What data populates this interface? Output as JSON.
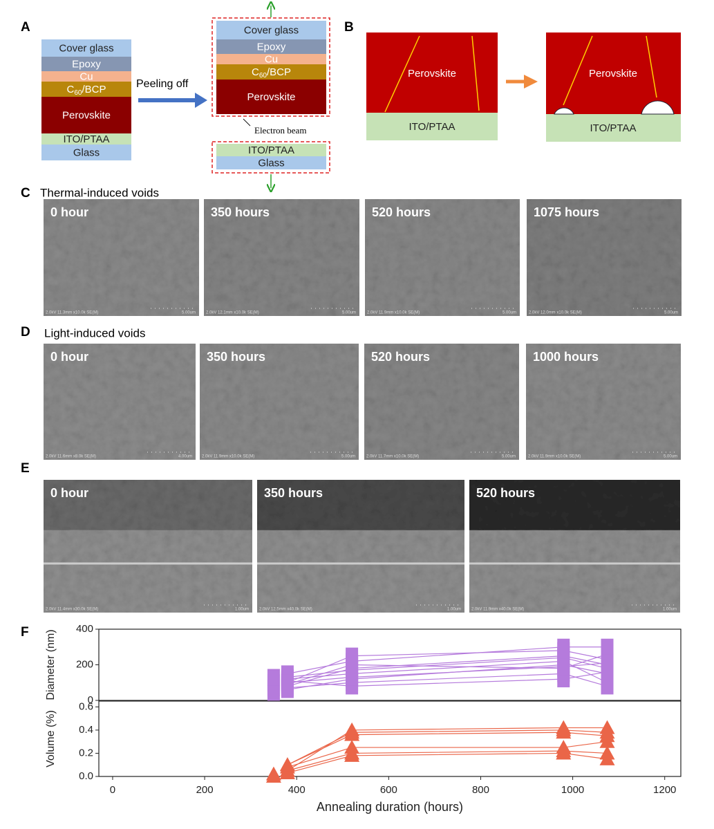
{
  "panel_labels": [
    "A",
    "B",
    "C",
    "D",
    "E",
    "F"
  ],
  "stack_full": [
    {
      "label": "Cover glass",
      "color": "#a9c8ea"
    },
    {
      "label": "Epoxy",
      "color": "#8696b2"
    },
    {
      "label": "Cu",
      "color": "#f4b28e"
    },
    {
      "parts": [
        "C",
        "60",
        "/BCP"
      ],
      "color": "#b8860b"
    },
    {
      "label": "Perovskite",
      "color": "#8b0000"
    },
    {
      "label": "ITO/PTAA",
      "color": "#c6e2b6"
    },
    {
      "label": "Glass",
      "color": "#a9c8ea"
    }
  ],
  "peel_label": "Peeling off",
  "stack_top": [
    {
      "label": "Cover glass",
      "color": "#a9c8ea"
    },
    {
      "label": "Epoxy",
      "color": "#8696b2"
    },
    {
      "label": "Cu",
      "color": "#f4b28e"
    },
    {
      "parts": [
        "C",
        "60",
        "/BCP"
      ],
      "color": "#b8860b"
    },
    {
      "label": "Perovskite",
      "color": "#8b0000"
    }
  ],
  "beam_label": "Electron beam",
  "stack_bottom": [
    {
      "label": "ITO/PTAA",
      "color": "#c6e2b6"
    },
    {
      "label": "Glass",
      "color": "#a9c8ea"
    }
  ],
  "schematic": {
    "left": {
      "top": "Perovskite",
      "bottom": "ITO/PTAA"
    },
    "right": {
      "top": "Perovskite",
      "bottom": "ITO/PTAA"
    }
  },
  "thermal": {
    "title": "Thermal-induced voids",
    "images": [
      {
        "label": "0 hour",
        "meta": "2.0kV 11.3mm x10.0k SE(M)",
        "scale": "5.00um"
      },
      {
        "label": "350 hours",
        "meta": "2.0kV 12.1mm x10.0k SE(M)",
        "scale": "5.00um"
      },
      {
        "label": "520 hours",
        "meta": "2.0kV 11.9mm x10.0k SE(M)",
        "scale": "5.00um"
      },
      {
        "label": "1075 hours",
        "meta": "2.0kV 12.0mm x10.0k SE(M)",
        "scale": "5.00um"
      }
    ]
  },
  "light": {
    "title": "Light-induced voids",
    "images": [
      {
        "label": "0 hour",
        "meta": "2.0kV 11.6mm x8.0k SE(M)",
        "scale": "4.00um"
      },
      {
        "label": "350 hours",
        "meta": "2.0kV 11.9mm x10.0k SE(M)",
        "scale": "5.00um"
      },
      {
        "label": "520 hours",
        "meta": "2.0kV 11.7mm x10.0k SE(M)",
        "scale": "5.00um"
      },
      {
        "label": "1000 hours",
        "meta": "2.0kV 11.9mm x10.0k SE(M)",
        "scale": "5.00um"
      }
    ]
  },
  "cross": {
    "images": [
      {
        "label": "0 hour",
        "meta": "2.0kV 11.4mm x30.0k SE(M)",
        "scale": "1.00um"
      },
      {
        "label": "350 hours",
        "meta": "2.0kV 12.5mm x40.0k SE(M)",
        "scale": "1.00um"
      },
      {
        "label": "520 hours",
        "meta": "2.0kV 11.9mm x40.0k SE(M)",
        "scale": "1.00um"
      }
    ]
  },
  "chart_data": [
    {
      "type": "line",
      "ylabel": "Diameter (nm)",
      "xlim": [
        -30,
        1235
      ],
      "ylim": [
        0,
        400
      ],
      "yticks": [
        0,
        200,
        400
      ],
      "marker": "square",
      "series": [
        {
          "color": "#b57bdc",
          "connect": false,
          "x": [
            350,
            350,
            350,
            350
          ],
          "values": [
            40,
            70,
            100,
            130
          ]
        },
        {
          "color": "#b57bdc",
          "x": [
            380,
            520,
            980,
            1075
          ],
          "values": [
            60,
            120,
            200,
            150
          ]
        },
        {
          "color": "#b57bdc",
          "x": [
            380,
            520,
            980,
            1075
          ],
          "values": [
            80,
            180,
            250,
            200
          ]
        },
        {
          "color": "#b57bdc",
          "x": [
            380,
            520,
            980,
            1075
          ],
          "values": [
            100,
            250,
            280,
            230
          ]
        },
        {
          "color": "#b57bdc",
          "x": [
            380,
            520,
            980,
            1075
          ],
          "values": [
            120,
            150,
            220,
            100
          ]
        },
        {
          "color": "#b57bdc",
          "x": [
            380,
            520,
            980,
            1075
          ],
          "values": [
            70,
            100,
            150,
            80
          ]
        },
        {
          "color": "#b57bdc",
          "x": [
            380,
            520,
            980,
            1075
          ],
          "values": [
            90,
            200,
            180,
            260
          ]
        },
        {
          "color": "#b57bdc",
          "x": [
            380,
            520,
            980,
            1075
          ],
          "values": [
            150,
            220,
            300,
            300
          ]
        },
        {
          "color": "#b57bdc",
          "x": [
            380,
            520,
            980,
            1075
          ],
          "values": [
            110,
            80,
            120,
            160
          ]
        },
        {
          "color": "#b57bdc",
          "x": [
            380,
            520,
            980,
            1075
          ],
          "values": [
            130,
            170,
            240,
            180
          ]
        },
        {
          "color": "#b57bdc",
          "x": [
            380,
            520,
            980,
            1075
          ],
          "values": [
            100,
            130,
            190,
            210
          ]
        }
      ]
    },
    {
      "type": "line",
      "ylabel": "Volume (%)",
      "xlabel": "Annealing duration (hours)",
      "xlim": [
        -30,
        1235
      ],
      "ylim": [
        0,
        0.65
      ],
      "yticks": [
        {
          "value": 0,
          "label": "0.0"
        },
        0.2,
        0.4,
        0.6
      ],
      "xticks": [
        0,
        200,
        400,
        600,
        800,
        1000,
        1200
      ],
      "marker": "triangle",
      "series": [
        {
          "color": "#ea6548",
          "connect": false,
          "x": [
            350,
            350
          ],
          "values": [
            0.0,
            0.02
          ]
        },
        {
          "color": "#ea6548",
          "x": [
            380,
            520,
            980,
            1075
          ],
          "values": [
            0.05,
            0.4,
            0.42,
            0.42
          ]
        },
        {
          "color": "#ea6548",
          "x": [
            380,
            520,
            980,
            1075
          ],
          "values": [
            0.1,
            0.38,
            0.4,
            0.38
          ]
        },
        {
          "color": "#ea6548",
          "x": [
            380,
            520,
            980,
            1075
          ],
          "values": [
            0.08,
            0.25,
            0.25,
            0.3
          ]
        },
        {
          "color": "#ea6548",
          "x": [
            380,
            520,
            980,
            1075
          ],
          "values": [
            0.05,
            0.2,
            0.22,
            0.2
          ]
        },
        {
          "color": "#ea6548",
          "x": [
            380,
            520,
            980,
            1075
          ],
          "values": [
            0.03,
            0.18,
            0.2,
            0.15
          ]
        },
        {
          "color": "#ea6548",
          "x": [
            380,
            520,
            980,
            1075
          ],
          "values": [
            0.1,
            0.36,
            0.38,
            0.35
          ]
        }
      ]
    }
  ]
}
